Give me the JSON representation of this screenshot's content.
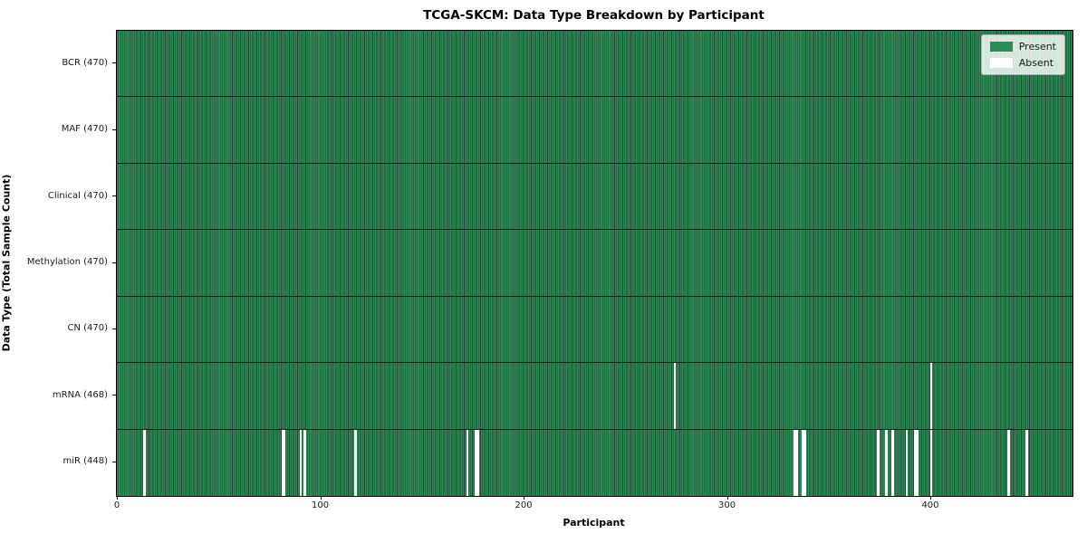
{
  "colors": {
    "present": "#2e8b57",
    "absent": "#ffffff",
    "bar_edge": "#1b4a31",
    "row_divider": "rgba(0,0,0,0.75)",
    "spine": "#000000",
    "legend_border": "#b4b4b4"
  },
  "chart_data": {
    "type": "heatmap",
    "title": "TCGA-SKCM: Data Type Breakdown by Participant",
    "xlabel": "Participant",
    "ylabel": "Data Type (Total Sample Count)",
    "x_ticks": [
      0,
      100,
      200,
      300,
      400
    ],
    "xlim": [
      -0.5,
      469.5
    ],
    "n_participants": 470,
    "grid": false,
    "legend_position": "upper right",
    "legend": [
      {
        "label": "Present",
        "color": "#2e8b57"
      },
      {
        "label": "Absent",
        "color": "#ffffff"
      }
    ],
    "rows": [
      {
        "label": "BCR (470)",
        "data_type": "BCR",
        "count": 470,
        "absent_participants": []
      },
      {
        "label": "MAF (470)",
        "data_type": "MAF",
        "count": 470,
        "absent_participants": []
      },
      {
        "label": "Clinical (470)",
        "data_type": "Clinical",
        "count": 470,
        "absent_participants": []
      },
      {
        "label": "Methylation (470)",
        "data_type": "Methylation",
        "count": 470,
        "absent_participants": []
      },
      {
        "label": "CN (470)",
        "data_type": "CN",
        "count": 470,
        "absent_participants": []
      },
      {
        "label": "mRNA (468)",
        "data_type": "mRNA",
        "count": 468,
        "absent_participants": [
          274,
          400
        ]
      },
      {
        "label": "miR (448)",
        "data_type": "miR",
        "count": 448,
        "absent_participants": [
          13,
          81,
          82,
          90,
          92,
          117,
          172,
          176,
          177,
          333,
          334,
          337,
          338,
          374,
          378,
          381,
          388,
          392,
          393,
          400,
          438,
          447
        ]
      }
    ]
  }
}
